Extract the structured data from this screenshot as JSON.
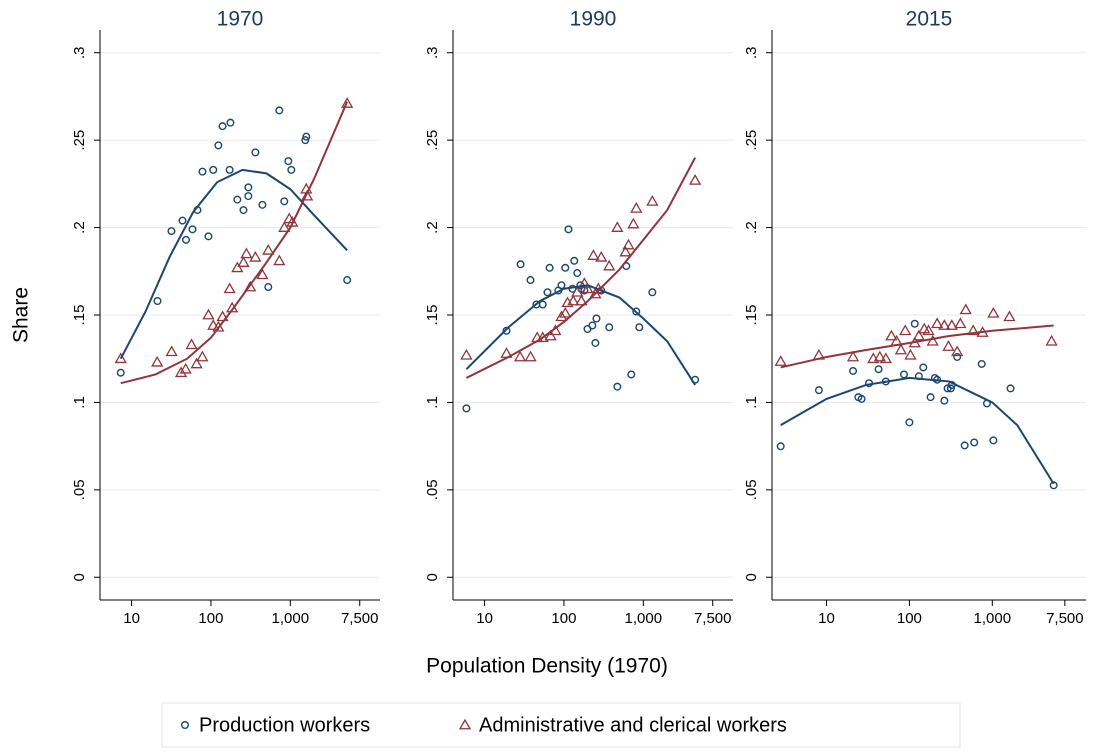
{
  "figure": {
    "xlabel": "Population Density (1970)",
    "ylabel": "Share"
  },
  "chart_data": [
    {
      "type": "scatter",
      "title": "1970",
      "xscale": "log",
      "grid": true,
      "xlim": [
        4,
        13500
      ],
      "ylim": [
        -0.013,
        0.313
      ],
      "xticks": [
        10,
        100,
        {
          "value": 1000,
          "label": "1,000"
        },
        {
          "value": 7500,
          "label": "7,500"
        }
      ],
      "yticks": [
        0,
        {
          "value": 0.05,
          "label": ".05"
        },
        {
          "value": 0.1,
          "label": ".1"
        },
        {
          "value": 0.15,
          "label": ".15"
        },
        {
          "value": 0.2,
          "label": ".2"
        },
        {
          "value": 0.25,
          "label": ".25"
        },
        {
          "value": 0.3,
          "label": ".3"
        }
      ],
      "series": [
        {
          "name": "Production workers",
          "color": "#1a476f",
          "marker": "circle",
          "x": [
            7.3,
            21.2,
            31.8,
            43.8,
            48.5,
            58.5,
            67.6,
            78.2,
            93,
            107,
            124,
            140,
            176,
            172,
            215,
            257,
            296,
            296,
            363,
            445,
            528,
            727,
            840,
            944,
            1030,
            1545,
            1590,
            5210
          ],
          "values": [
            0.117,
            0.158,
            0.198,
            0.204,
            0.193,
            0.199,
            0.21,
            0.232,
            0.195,
            0.233,
            0.247,
            0.258,
            0.26,
            0.233,
            0.216,
            0.21,
            0.223,
            0.218,
            0.243,
            0.213,
            0.166,
            0.267,
            0.215,
            0.238,
            0.233,
            0.25,
            0.252,
            0.17
          ]
        },
        {
          "name": "Administrative and clerical workers",
          "color": "#90353b",
          "marker": "triangle",
          "x": [
            7.3,
            21,
            32,
            42,
            48,
            57,
            66,
            78,
            93,
            107,
            124,
            140,
            172,
            185,
            215,
            257,
            280,
            313,
            363,
            445,
            528,
            727,
            840,
            970,
            1060,
            1590,
            1630,
            5210
          ],
          "values": [
            0.125,
            0.123,
            0.129,
            0.117,
            0.119,
            0.133,
            0.122,
            0.126,
            0.15,
            0.144,
            0.143,
            0.149,
            0.165,
            0.154,
            0.177,
            0.18,
            0.185,
            0.166,
            0.183,
            0.173,
            0.187,
            0.181,
            0.2,
            0.205,
            0.203,
            0.222,
            0.218,
            0.271
          ]
        }
      ],
      "fits": [
        {
          "color": "#1a476f",
          "x": [
            7.3,
            15,
            30,
            60,
            120,
            250,
            500,
            1000,
            2000,
            5200
          ],
          "values": [
            0.125,
            0.152,
            0.183,
            0.209,
            0.226,
            0.233,
            0.231,
            0.222,
            0.207,
            0.187
          ]
        },
        {
          "color": "#90353b",
          "x": [
            7.3,
            20,
            50,
            100,
            200,
            500,
            1000,
            2000,
            5200
          ],
          "values": [
            0.111,
            0.116,
            0.125,
            0.137,
            0.155,
            0.18,
            0.2,
            0.228,
            0.272
          ]
        }
      ]
    },
    {
      "type": "scatter",
      "title": "1990",
      "xscale": "log",
      "grid": true,
      "xlim": [
        4,
        13500
      ],
      "ylim": [
        -0.013,
        0.313
      ],
      "xticks": [
        10,
        100,
        {
          "value": 1000,
          "label": "1,000"
        },
        {
          "value": 7500,
          "label": "7,500"
        }
      ],
      "yticks": [
        0,
        {
          "value": 0.05,
          "label": ".05"
        },
        {
          "value": 0.1,
          "label": ".1"
        },
        {
          "value": 0.15,
          "label": ".15"
        },
        {
          "value": 0.2,
          "label": ".2"
        },
        {
          "value": 0.25,
          "label": ".25"
        },
        {
          "value": 0.3,
          "label": ".3"
        }
      ],
      "series": [
        {
          "name": "Production workers",
          "color": "#1a476f",
          "marker": "circle",
          "x": [
            5.9,
            18.9,
            28.4,
            37.9,
            45,
            54,
            62,
            66,
            85,
            93,
            104,
            114,
            128,
            135,
            147,
            161,
            166,
            181,
            198,
            228,
            249,
            257,
            295,
            372,
            471,
            611,
            706,
            815,
            890,
            1300,
            4500
          ],
          "values": [
            0.0966,
            0.141,
            0.179,
            0.17,
            0.156,
            0.156,
            0.163,
            0.177,
            0.164,
            0.167,
            0.177,
            0.199,
            0.165,
            0.181,
            0.174,
            0.167,
            0.165,
            0.164,
            0.142,
            0.144,
            0.134,
            0.148,
            0.164,
            0.143,
            0.109,
            0.178,
            0.116,
            0.152,
            0.143,
            0.163,
            0.113
          ]
        },
        {
          "name": "Administrative and clerical workers",
          "color": "#90353b",
          "marker": "triangle",
          "x": [
            5.9,
            18.9,
            28,
            38,
            46,
            54,
            68,
            78,
            93,
            104,
            111,
            131,
            147,
            166,
            181,
            198,
            235,
            249,
            272,
            295,
            372,
            471,
            596,
            651,
            750,
            815,
            1300,
            4500
          ],
          "values": [
            0.127,
            0.128,
            0.126,
            0.126,
            0.137,
            0.137,
            0.138,
            0.141,
            0.149,
            0.151,
            0.157,
            0.158,
            0.163,
            0.158,
            0.168,
            0.165,
            0.184,
            0.162,
            0.165,
            0.183,
            0.178,
            0.2,
            0.186,
            0.19,
            0.202,
            0.211,
            0.215,
            0.227
          ]
        }
      ],
      "fits": [
        {
          "color": "#1a476f",
          "x": [
            5.9,
            20,
            50,
            100,
            200,
            500,
            1000,
            2000,
            4500
          ],
          "values": [
            0.119,
            0.143,
            0.158,
            0.165,
            0.167,
            0.16,
            0.148,
            0.135,
            0.11
          ]
        },
        {
          "color": "#90353b",
          "x": [
            5.9,
            20,
            50,
            100,
            200,
            500,
            1000,
            2000,
            4500
          ],
          "values": [
            0.114,
            0.126,
            0.136,
            0.146,
            0.158,
            0.176,
            0.193,
            0.21,
            0.24
          ]
        }
      ]
    },
    {
      "type": "scatter",
      "title": "2015",
      "xscale": "log",
      "grid": true,
      "xlim": [
        2.2,
        13500
      ],
      "ylim": [
        -0.013,
        0.313
      ],
      "xticks": [
        10,
        100,
        {
          "value": 1000,
          "label": "1,000"
        },
        {
          "value": 7500,
          "label": "7,500"
        }
      ],
      "yticks": [
        0,
        {
          "value": 0.05,
          "label": ".05"
        },
        {
          "value": 0.1,
          "label": ".1"
        },
        {
          "value": 0.15,
          "label": ".15"
        },
        {
          "value": 0.2,
          "label": ".2"
        },
        {
          "value": 0.25,
          "label": ".25"
        },
        {
          "value": 0.3,
          "label": ".3"
        }
      ],
      "series": [
        {
          "name": "Production workers",
          "color": "#1a476f",
          "marker": "circle",
          "x": [
            2.8,
            8.1,
            20.9,
            24.2,
            26.5,
            32.6,
            42.5,
            52,
            86,
            100,
            116,
            130,
            147,
            180,
            203,
            216,
            264,
            289,
            316,
            325,
            377,
            464,
            605,
            745,
            862,
            1030,
            1660,
            5500
          ],
          "values": [
            0.0749,
            0.107,
            0.118,
            0.103,
            0.102,
            0.111,
            0.119,
            0.112,
            0.116,
            0.0886,
            0.145,
            0.115,
            0.12,
            0.103,
            0.114,
            0.113,
            0.101,
            0.108,
            0.108,
            0.11,
            0.126,
            0.0754,
            0.0771,
            0.122,
            0.0994,
            0.0783,
            0.108,
            0.0526
          ]
        },
        {
          "name": "Administrative and clerical workers",
          "color": "#90353b",
          "marker": "triangle",
          "x": [
            2.8,
            8.1,
            20.9,
            36.7,
            44,
            52,
            60.6,
            70,
            79,
            89,
            103,
            116,
            130,
            151,
            170,
            191,
            216,
            264,
            296,
            325,
            377,
            412,
            478,
            588,
            763,
            1030,
            1610,
            5190
          ],
          "values": [
            0.1234,
            0.127,
            0.126,
            0.125,
            0.126,
            0.125,
            0.138,
            0.135,
            0.13,
            0.141,
            0.127,
            0.134,
            0.138,
            0.142,
            0.141,
            0.135,
            0.145,
            0.144,
            0.132,
            0.144,
            0.129,
            0.145,
            0.153,
            0.141,
            0.14,
            0.151,
            0.149,
            0.135
          ]
        }
      ],
      "fits": [
        {
          "color": "#1a476f",
          "x": [
            2.8,
            10,
            30,
            100,
            300,
            1000,
            2000,
            5500
          ],
          "values": [
            0.087,
            0.102,
            0.11,
            0.114,
            0.112,
            0.1,
            0.087,
            0.0535
          ]
        },
        {
          "color": "#90353b",
          "x": [
            2.8,
            10,
            30,
            100,
            300,
            1000,
            5500
          ],
          "values": [
            0.12,
            0.126,
            0.13,
            0.134,
            0.138,
            0.141,
            0.144
          ]
        }
      ]
    }
  ]
}
